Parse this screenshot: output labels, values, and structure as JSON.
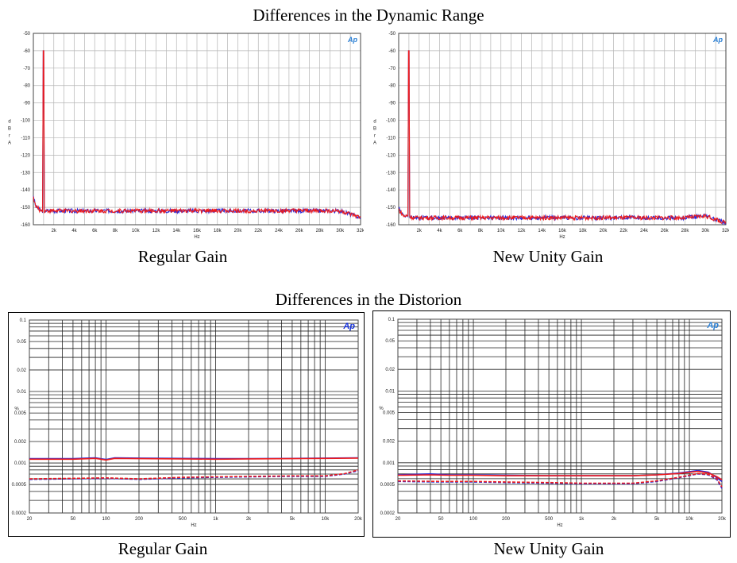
{
  "headings": {
    "dynamic_range": "Differences in the Dynamic Range",
    "distortion": "Differences in the Distorion"
  },
  "captions": {
    "top_left": "Regular Gain",
    "top_right": "New Unity Gain",
    "bottom_left": "Regular Gain",
    "bottom_right": "New Unity Gain"
  },
  "colors": {
    "blue": "#2a2ad8",
    "red": "#ee1b1b",
    "grid": "#b5b5b5",
    "logo": "#2a7fd4"
  },
  "chart_data": [
    {
      "type": "line",
      "caption": "Regular Gain",
      "logo": "Ap",
      "xlabel": "Hz",
      "ylabel": "d B r A",
      "xlim": [
        0,
        32000
      ],
      "ylim": [
        -160,
        -50
      ],
      "xticks": [
        2000,
        4000,
        6000,
        8000,
        10000,
        12000,
        14000,
        16000,
        18000,
        20000,
        22000,
        24000,
        26000,
        28000,
        30000,
        32000
      ],
      "xtick_labels": [
        "2k",
        "4k",
        "6k",
        "8k",
        "10k",
        "12k",
        "14k",
        "16k",
        "18k",
        "20k",
        "22k",
        "24k",
        "26k",
        "28k",
        "30k",
        "32k"
      ],
      "yticks": [
        -50,
        -60,
        -70,
        -80,
        -90,
        -100,
        -110,
        -120,
        -130,
        -140,
        -150,
        -160
      ],
      "ytick_labels": [
        "-50",
        "-60",
        "-70",
        "-80",
        "-90",
        "-100",
        "-110",
        "-120",
        "-130",
        "-140",
        "-150",
        "-160"
      ],
      "grid": true,
      "peak": {
        "x": 1000,
        "y": -60
      },
      "series": [
        {
          "color": "blue",
          "x": [
            0,
            200,
            500,
            800,
            1500,
            4000,
            8000,
            12000,
            16000,
            20000,
            24000,
            28000,
            30000,
            31000,
            32000
          ],
          "y": [
            -143,
            -149,
            -151,
            -152,
            -152,
            -152,
            -152,
            -152,
            -152,
            -152,
            -152,
            -152,
            -152,
            -154,
            -156
          ]
        },
        {
          "color": "red",
          "x": [
            0,
            200,
            500,
            800,
            1500,
            4000,
            8000,
            12000,
            16000,
            20000,
            24000,
            28000,
            30000,
            31000,
            32000
          ],
          "y": [
            -144,
            -149,
            -151,
            -152,
            -152,
            -152,
            -152,
            -152,
            -152,
            -152,
            -152,
            -152,
            -152,
            -154,
            -156
          ]
        }
      ]
    },
    {
      "type": "line",
      "caption": "New Unity Gain",
      "logo": "Ap",
      "xlabel": "Hz",
      "ylabel": "d B r A",
      "xlim": [
        0,
        32000
      ],
      "ylim": [
        -160,
        -50
      ],
      "xticks": [
        2000,
        4000,
        6000,
        8000,
        10000,
        12000,
        14000,
        16000,
        18000,
        20000,
        22000,
        24000,
        26000,
        28000,
        30000,
        32000
      ],
      "xtick_labels": [
        "2k",
        "4k",
        "6k",
        "8k",
        "10k",
        "12k",
        "14k",
        "16k",
        "18k",
        "20k",
        "22k",
        "24k",
        "26k",
        "28k",
        "30k",
        "32k"
      ],
      "yticks": [
        -50,
        -60,
        -70,
        -80,
        -90,
        -100,
        -110,
        -120,
        -130,
        -140,
        -150,
        -160
      ],
      "ytick_labels": [
        "-50",
        "-60",
        "-70",
        "-80",
        "-90",
        "-100",
        "-110",
        "-120",
        "-130",
        "-140",
        "-150",
        "-160"
      ],
      "grid": true,
      "peak": {
        "x": 1000,
        "y": -60
      },
      "series": [
        {
          "color": "blue",
          "x": [
            0,
            200,
            500,
            800,
            1500,
            4000,
            8000,
            12000,
            16000,
            20000,
            24000,
            28000,
            30000,
            31000,
            32000
          ],
          "y": [
            -150,
            -153,
            -155,
            -155,
            -156,
            -156,
            -156,
            -156,
            -156,
            -156,
            -156,
            -156,
            -155,
            -157,
            -159
          ]
        },
        {
          "color": "red",
          "x": [
            0,
            200,
            500,
            800,
            1500,
            4000,
            8000,
            12000,
            16000,
            20000,
            24000,
            28000,
            30000,
            31000,
            32000
          ],
          "y": [
            -151,
            -153,
            -155,
            -155,
            -156,
            -156,
            -156,
            -156,
            -156,
            -156,
            -156,
            -156,
            -155,
            -157,
            -159
          ]
        }
      ]
    },
    {
      "type": "line",
      "caption": "Regular Gain",
      "logo": "Ap",
      "xlabel": "Hz",
      "ylabel": "%",
      "xscale": "log",
      "yscale": "log",
      "xlim": [
        20,
        20000
      ],
      "ylim": [
        0.0002,
        0.1
      ],
      "xticks": [
        20,
        50,
        100,
        200,
        500,
        1000,
        2000,
        5000,
        10000,
        20000
      ],
      "xtick_labels": [
        "20",
        "50",
        "100",
        "200",
        "500",
        "1k",
        "2k",
        "5k",
        "10k",
        "20k"
      ],
      "yticks": [
        0.1,
        0.05,
        0.02,
        0.01,
        0.005,
        0.002,
        0.001,
        0.0005,
        0.0002
      ],
      "ytick_labels": [
        "0.1",
        "0.05",
        "0.02",
        "0.01",
        "0.005",
        "0.002",
        "0.001",
        "0.0005",
        "0.0002"
      ],
      "grid": true,
      "series": [
        {
          "color": "blue",
          "style": "solid",
          "x": [
            20,
            50,
            80,
            100,
            120,
            200,
            500,
            1000,
            2000,
            5000,
            10000,
            20000
          ],
          "y": [
            0.00115,
            0.00115,
            0.00118,
            0.00112,
            0.00118,
            0.00117,
            0.00116,
            0.00115,
            0.00115,
            0.00116,
            0.00117,
            0.00118
          ]
        },
        {
          "color": "red",
          "style": "solid",
          "x": [
            20,
            50,
            80,
            100,
            120,
            200,
            500,
            1000,
            2000,
            5000,
            10000,
            20000
          ],
          "y": [
            0.00113,
            0.00113,
            0.00116,
            0.0011,
            0.00116,
            0.00115,
            0.00114,
            0.00113,
            0.00114,
            0.00115,
            0.00116,
            0.00117
          ]
        },
        {
          "color": "blue",
          "style": "dashed",
          "x": [
            20,
            50,
            100,
            200,
            500,
            1000,
            2000,
            5000,
            10000,
            15000,
            20000
          ],
          "y": [
            0.00059,
            0.0006,
            0.00061,
            0.00059,
            0.00062,
            0.00063,
            0.00064,
            0.00065,
            0.00065,
            0.0007,
            0.00078
          ]
        },
        {
          "color": "red",
          "style": "dashed",
          "x": [
            20,
            50,
            100,
            200,
            500,
            1000,
            2000,
            5000,
            10000,
            15000,
            20000
          ],
          "y": [
            0.0006,
            0.00061,
            0.00062,
            0.0006,
            0.00063,
            0.00064,
            0.00065,
            0.00066,
            0.00066,
            0.00071,
            0.0008
          ]
        }
      ]
    },
    {
      "type": "line",
      "caption": "New Unity Gain",
      "logo": "Ap",
      "xlabel": "Hz",
      "ylabel": "%",
      "xscale": "log",
      "yscale": "log",
      "xlim": [
        20,
        20000
      ],
      "ylim": [
        0.0002,
        0.1
      ],
      "xticks": [
        20,
        50,
        100,
        200,
        500,
        1000,
        2000,
        5000,
        10000,
        20000
      ],
      "xtick_labels": [
        "20",
        "50",
        "100",
        "200",
        "500",
        "1k",
        "2k",
        "5k",
        "10k",
        "20k"
      ],
      "yticks": [
        0.1,
        0.05,
        0.02,
        0.01,
        0.005,
        0.002,
        0.001,
        0.0005,
        0.0002
      ],
      "ytick_labels": [
        "0.1",
        "0.05",
        "0.02",
        "0.01",
        "0.005",
        "0.002",
        "0.001",
        "0.0005",
        "0.0002"
      ],
      "grid": true,
      "series": [
        {
          "color": "blue",
          "style": "solid",
          "x": [
            20,
            40,
            60,
            100,
            200,
            500,
            1000,
            2000,
            3000,
            5000,
            8000,
            12000,
            15000,
            18000,
            20000
          ],
          "y": [
            0.00068,
            0.0007,
            0.00068,
            0.00068,
            0.00067,
            0.00066,
            0.00066,
            0.00066,
            0.00066,
            0.00068,
            0.00072,
            0.00078,
            0.00074,
            0.00062,
            0.00055
          ]
        },
        {
          "color": "red",
          "style": "solid",
          "x": [
            20,
            40,
            60,
            100,
            200,
            500,
            1000,
            2000,
            3000,
            5000,
            8000,
            12000,
            15000,
            18000,
            20000
          ],
          "y": [
            0.00067,
            0.00068,
            0.00067,
            0.00067,
            0.00066,
            0.00066,
            0.00066,
            0.00066,
            0.00066,
            0.00068,
            0.00071,
            0.00076,
            0.00072,
            0.00064,
            0.00058
          ]
        },
        {
          "color": "blue",
          "style": "dashed",
          "x": [
            20,
            50,
            100,
            200,
            500,
            1000,
            2000,
            3000,
            5000,
            8000,
            12000,
            15000,
            18000,
            20000
          ],
          "y": [
            0.00055,
            0.00054,
            0.00054,
            0.00053,
            0.00052,
            0.00051,
            0.00051,
            0.00051,
            0.00055,
            0.00062,
            0.0007,
            0.00068,
            0.00058,
            0.00044
          ]
        },
        {
          "color": "red",
          "style": "dashed",
          "x": [
            20,
            50,
            100,
            200,
            500,
            1000,
            2000,
            3000,
            5000,
            8000,
            12000,
            15000,
            18000,
            20000
          ],
          "y": [
            0.00056,
            0.00055,
            0.00055,
            0.00054,
            0.00053,
            0.00052,
            0.00052,
            0.00052,
            0.00056,
            0.00063,
            0.00071,
            0.00069,
            0.0006,
            0.00046
          ]
        }
      ]
    }
  ]
}
